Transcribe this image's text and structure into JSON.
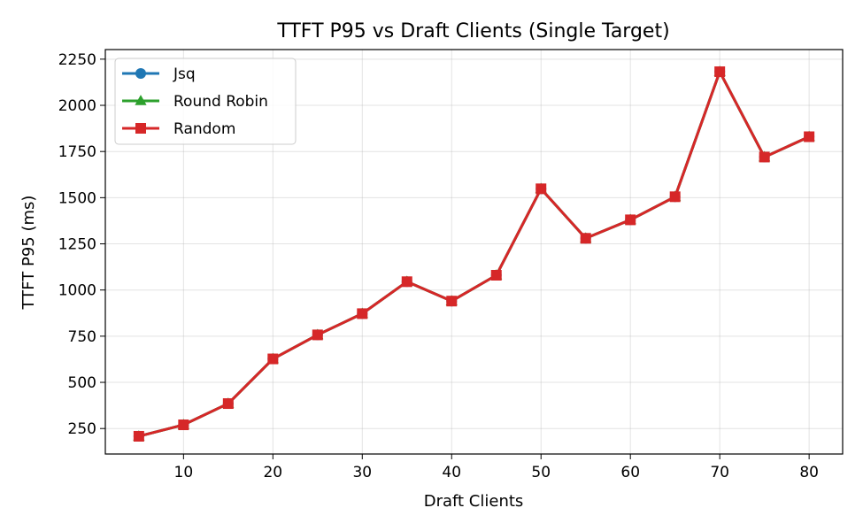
{
  "chart_data": {
    "type": "line",
    "title": "TTFT P95 vs Draft Clients (Single Target)",
    "xlabel": "Draft Clients",
    "ylabel": "TTFT P95 (ms)",
    "x": [
      5,
      10,
      15,
      20,
      25,
      30,
      35,
      40,
      45,
      50,
      55,
      60,
      65,
      70,
      75,
      80
    ],
    "xlim": [
      1.25,
      83.75
    ],
    "ylim": [
      112,
      2302
    ],
    "xticks": [
      10,
      20,
      30,
      40,
      50,
      60,
      70,
      80
    ],
    "yticks": [
      250,
      500,
      750,
      1000,
      1250,
      1500,
      1750,
      2000,
      2250
    ],
    "grid": true,
    "legend_position": "top-left",
    "series": [
      {
        "name": "Jsq",
        "color": "#1f77b4",
        "marker": "circle",
        "values": [
          208,
          270,
          385,
          627,
          757,
          872,
          1045,
          940,
          1080,
          1548,
          1280,
          1380,
          1505,
          2182,
          1720,
          1830
        ]
      },
      {
        "name": "Round Robin",
        "color": "#2ca02c",
        "marker": "triangle",
        "values": [
          208,
          270,
          385,
          627,
          757,
          872,
          1045,
          940,
          1080,
          1548,
          1280,
          1380,
          1505,
          2182,
          1720,
          1830
        ]
      },
      {
        "name": "Random",
        "color": "#d62728",
        "marker": "square",
        "values": [
          208,
          270,
          385,
          627,
          757,
          872,
          1045,
          940,
          1080,
          1548,
          1280,
          1380,
          1505,
          2182,
          1720,
          1830
        ]
      }
    ]
  }
}
